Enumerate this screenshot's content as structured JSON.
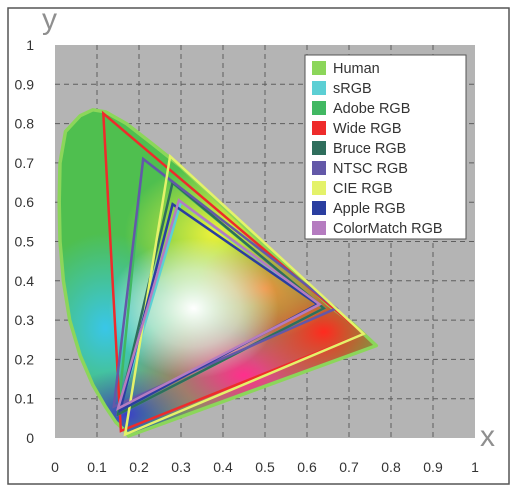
{
  "chart_data": {
    "type": "line",
    "title": "",
    "xlabel": "x",
    "ylabel": "y",
    "xlim": [
      0,
      1
    ],
    "ylim": [
      0,
      1
    ],
    "x_ticks": [
      "0",
      "0.1",
      "0.2",
      "0.3",
      "0.4",
      "0.5",
      "0.6",
      "0.7",
      "0.8",
      "0.9",
      "1"
    ],
    "y_ticks": [
      "0",
      "0.1",
      "0.2",
      "0.3",
      "0.4",
      "0.5",
      "0.6",
      "0.7",
      "0.8",
      "0.9",
      "1"
    ],
    "grid": true,
    "plot_background": "#b4b4b4",
    "legend_position": "top-right",
    "series": [
      {
        "name": "Human",
        "color": "#8cd65a",
        "kind": "locus",
        "points": [
          [
            0.175,
            0.005
          ],
          [
            0.165,
            0.02
          ],
          [
            0.145,
            0.04
          ],
          [
            0.12,
            0.08
          ],
          [
            0.09,
            0.135
          ],
          [
            0.06,
            0.21
          ],
          [
            0.035,
            0.3
          ],
          [
            0.02,
            0.4
          ],
          [
            0.012,
            0.5
          ],
          [
            0.01,
            0.6
          ],
          [
            0.012,
            0.7
          ],
          [
            0.025,
            0.78
          ],
          [
            0.06,
            0.82
          ],
          [
            0.09,
            0.835
          ],
          [
            0.12,
            0.83
          ],
          [
            0.17,
            0.8
          ],
          [
            0.23,
            0.75
          ],
          [
            0.3,
            0.69
          ],
          [
            0.37,
            0.62
          ],
          [
            0.44,
            0.55
          ],
          [
            0.51,
            0.48
          ],
          [
            0.58,
            0.41
          ],
          [
            0.65,
            0.34
          ],
          [
            0.71,
            0.29
          ],
          [
            0.765,
            0.235
          ],
          [
            0.175,
            0.005
          ]
        ]
      },
      {
        "name": "sRGB",
        "color": "#5ccfd4",
        "kind": "gamut",
        "points": [
          [
            0.64,
            0.33
          ],
          [
            0.3,
            0.6
          ],
          [
            0.15,
            0.06
          ]
        ]
      },
      {
        "name": "Adobe RGB",
        "color": "#41b862",
        "kind": "gamut",
        "points": [
          [
            0.64,
            0.33
          ],
          [
            0.21,
            0.71
          ],
          [
            0.15,
            0.06
          ]
        ]
      },
      {
        "name": "Wide RGB",
        "color": "#ee2b2b",
        "kind": "gamut",
        "points": [
          [
            0.735,
            0.265
          ],
          [
            0.115,
            0.826
          ],
          [
            0.157,
            0.018
          ]
        ]
      },
      {
        "name": "Bruce RGB",
        "color": "#2f6e5c",
        "kind": "gamut",
        "points": [
          [
            0.64,
            0.33
          ],
          [
            0.28,
            0.65
          ],
          [
            0.15,
            0.06
          ]
        ]
      },
      {
        "name": "NTSC RGB",
        "color": "#6358a8",
        "kind": "gamut",
        "points": [
          [
            0.67,
            0.33
          ],
          [
            0.21,
            0.71
          ],
          [
            0.14,
            0.08
          ]
        ]
      },
      {
        "name": "CIE RGB",
        "color": "#e4f26a",
        "kind": "gamut",
        "points": [
          [
            0.735,
            0.265
          ],
          [
            0.274,
            0.717
          ],
          [
            0.167,
            0.009
          ]
        ]
      },
      {
        "name": "Apple RGB",
        "color": "#2a3ea0",
        "kind": "gamut",
        "points": [
          [
            0.625,
            0.34
          ],
          [
            0.28,
            0.595
          ],
          [
            0.155,
            0.07
          ]
        ]
      },
      {
        "name": "ColorMatch RGB",
        "color": "#b57cc0",
        "kind": "gamut",
        "points": [
          [
            0.63,
            0.34
          ],
          [
            0.295,
            0.605
          ],
          [
            0.15,
            0.075
          ]
        ]
      }
    ]
  }
}
